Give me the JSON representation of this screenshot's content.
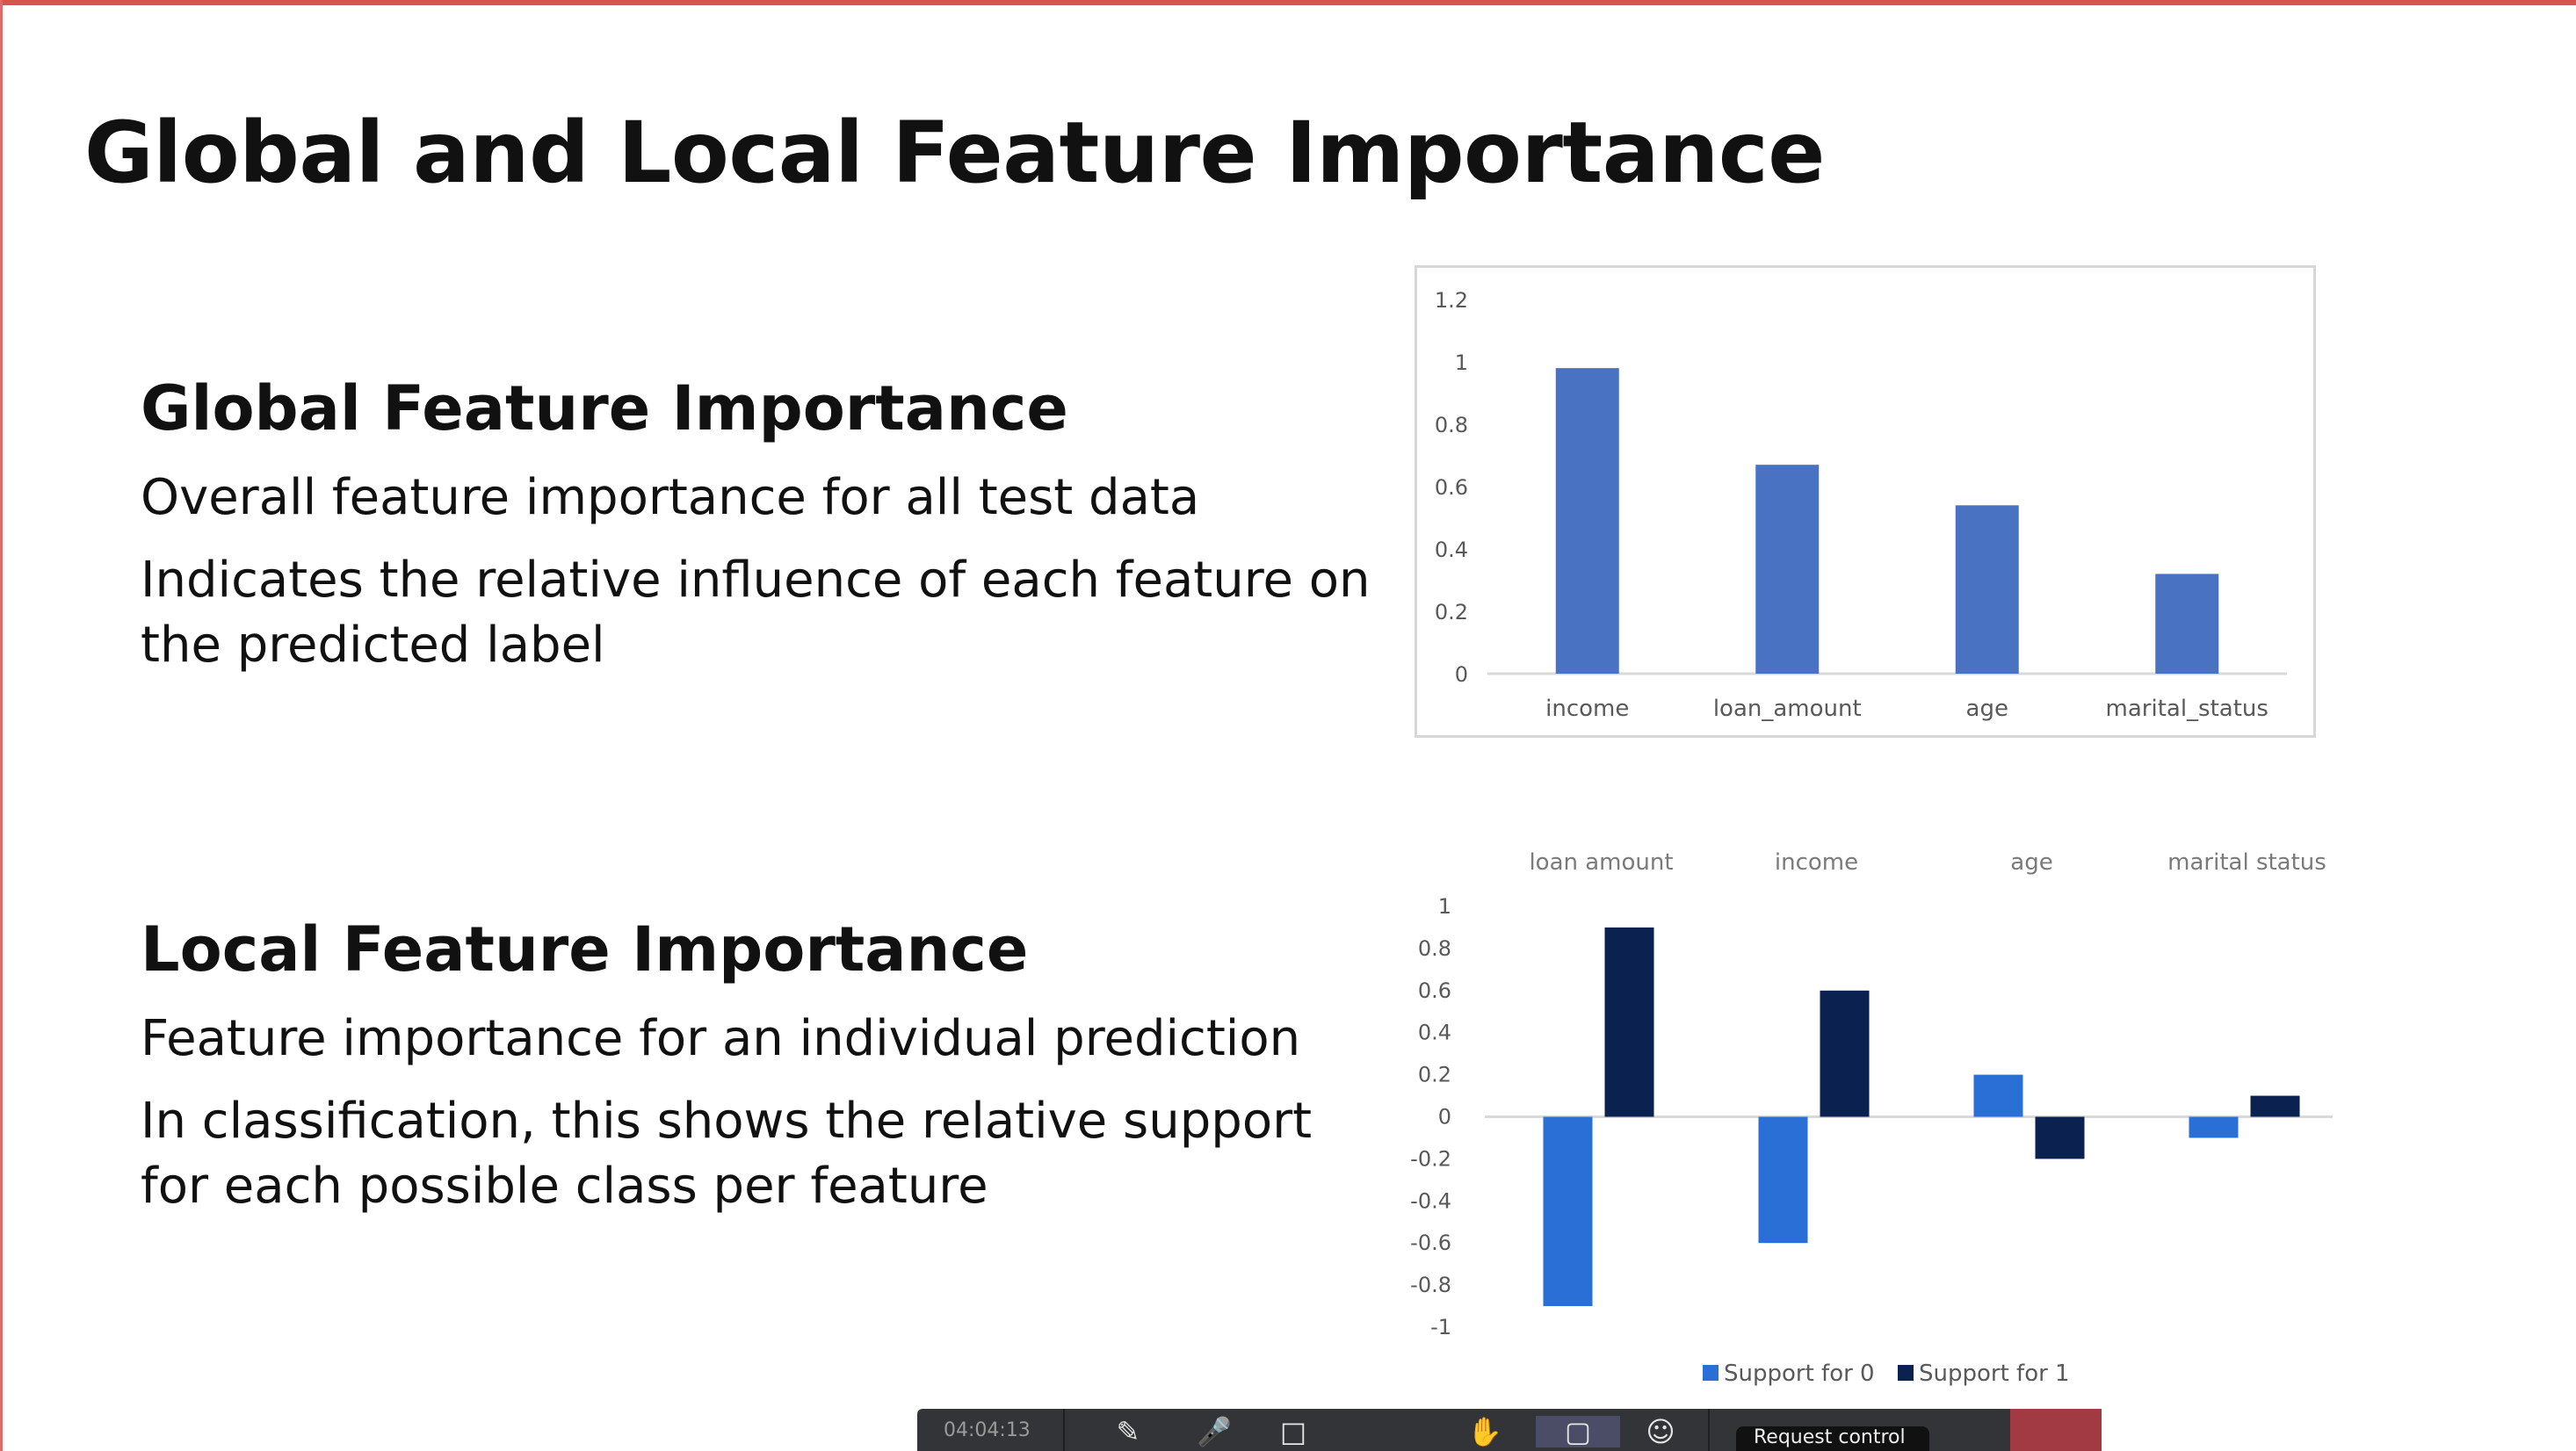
{
  "slide": {
    "title": "Global and Local Feature Importance",
    "global": {
      "heading": "Global Feature Importance",
      "line1": "Overall feature importance for all test data",
      "line2a": "Indicates the relative influence of each feature on",
      "line2b": "the predicted label"
    },
    "local": {
      "heading": "Local Feature Importance",
      "line1": "Feature importance for an individual prediction",
      "line2a": "In classification, this shows the relative support",
      "line2b": "for each possible class per feature"
    }
  },
  "taskbar": {
    "time": "04:04:13",
    "icons": [
      "video-off-icon",
      "mic-off-icon",
      "share-screen-icon",
      "raise-hand-icon",
      "chat-icon",
      "participants-icon"
    ],
    "pill_label": "Request control"
  },
  "colors": {
    "bar_global": "#4a72c3",
    "support0": "#2a6fd6",
    "support1": "#0b2150",
    "accent_border": "#d9534f"
  },
  "chart_data": [
    {
      "type": "bar",
      "title": "",
      "categories": [
        "income",
        "loan_amount",
        "age",
        "marital_status"
      ],
      "values": [
        0.98,
        0.67,
        0.54,
        0.32
      ],
      "ylim": [
        0,
        1.2
      ],
      "yticks": [
        "1.2",
        "1",
        "0.8",
        "0.6",
        "0.4",
        "0.2",
        "0"
      ],
      "grid": false,
      "legend": "none"
    },
    {
      "type": "bar",
      "title": "",
      "categories": [
        "loan amount",
        "income",
        "age",
        "marital status"
      ],
      "series": [
        {
          "name": "Support for 0",
          "values": [
            -0.9,
            -0.6,
            0.2,
            -0.1
          ]
        },
        {
          "name": "Support for 1",
          "values": [
            0.9,
            0.6,
            -0.2,
            0.1
          ]
        }
      ],
      "ylim": [
        -1,
        1
      ],
      "yticks": [
        "1",
        "0.8",
        "0.6",
        "0.4",
        "0.2",
        "0",
        "-0.2",
        "-0.4",
        "-0.6",
        "-0.8",
        "-1"
      ],
      "category_labels_position": "top",
      "grid": false,
      "legend": "bottom"
    }
  ]
}
